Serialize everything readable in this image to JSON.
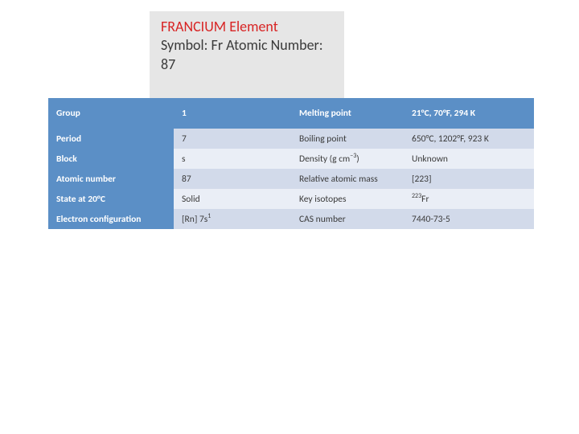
{
  "title": {
    "line1": "FRANCIUM Element",
    "line2": "Symbol: Fr Atomic Number: 87"
  },
  "table": {
    "header": {
      "c1": "Group",
      "c2": "1",
      "c3": "Melting point",
      "c4": "21°C, 70°F, 294 K"
    },
    "rows": [
      {
        "c1": "Period",
        "c2": "7",
        "c3": "Boiling point",
        "c4": "650°C, 1202°F, 923 K"
      },
      {
        "c1": "Block",
        "c2": "s",
        "c3_html": "Density (g cm<sup>−3</sup>)",
        "c4": "Unknown"
      },
      {
        "c1": "Atomic number",
        "c2": "87",
        "c3": "Relative atomic mass",
        "c4": "[223]"
      },
      {
        "c1": "State at 20°C",
        "c2": "Solid",
        "c3": "Key isotopes",
        "c4_html": "<sup>223</sup>Fr"
      },
      {
        "c1": "Electron configuration",
        "c2_html": "[Rn] 7s<sup>1</sup>",
        "c3": "CAS number",
        "c4": "7440-73-5"
      }
    ],
    "colors": {
      "header_bg": "#5b8fc6",
      "header_fg": "#ffffff",
      "row_light_bg": "#d2daea",
      "row_lighter_bg": "#eaeef6",
      "text": "#3a3a3a",
      "title_accent": "#d82424",
      "title_box_bg": "#e6e6e6"
    }
  }
}
